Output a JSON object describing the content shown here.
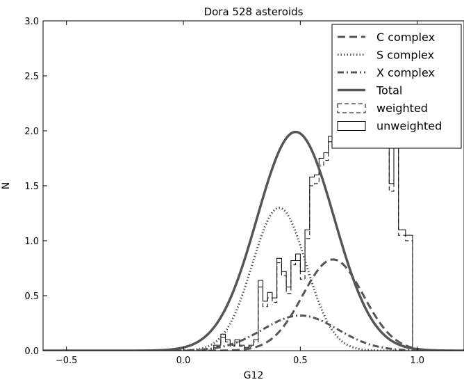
{
  "chart_data": {
    "type": "line",
    "title": "Dora 528 asteroids",
    "xlabel": "G12",
    "ylabel": "N",
    "xlim": [
      -0.6,
      1.2
    ],
    "ylim": [
      0.0,
      3.0
    ],
    "xticks": [
      {
        "v": -0.5,
        "label": "−0.5"
      },
      {
        "v": 0.0,
        "label": "0.0"
      },
      {
        "v": 0.5,
        "label": "0.5"
      },
      {
        "v": 1.0,
        "label": "1.0"
      }
    ],
    "yticks": [
      {
        "v": 0.0,
        "label": "0.0"
      },
      {
        "v": 0.5,
        "label": "0.5"
      },
      {
        "v": 1.0,
        "label": "1.0"
      },
      {
        "v": 1.5,
        "label": "1.5"
      },
      {
        "v": 2.0,
        "label": "2.0"
      },
      {
        "v": 2.5,
        "label": "2.5"
      },
      {
        "v": 3.0,
        "label": "3.0"
      }
    ],
    "grid": false,
    "legend_position": "top-right",
    "color": "#555555",
    "curves": [
      {
        "name": "C complex",
        "style": "dashed",
        "center": 0.64,
        "sigma": 0.13,
        "amplitude": 0.83
      },
      {
        "name": "S complex",
        "style": "dotted",
        "center": 0.41,
        "sigma": 0.115,
        "amplitude": 1.3
      },
      {
        "name": "X complex",
        "style": "dashdot",
        "center": 0.5,
        "sigma": 0.16,
        "amplitude": 0.32
      },
      {
        "name": "Total",
        "style": "solid",
        "center": 0.48,
        "sigma": 0.165,
        "amplitude": 1.99
      }
    ],
    "histograms": [
      {
        "name": "unweighted",
        "style": "solid-step",
        "edges": [
          0.13,
          0.16,
          0.18,
          0.2,
          0.22,
          0.24,
          0.26,
          0.28,
          0.3,
          0.32,
          0.34,
          0.36,
          0.38,
          0.4,
          0.42,
          0.44,
          0.46,
          0.48,
          0.5,
          0.52,
          0.54,
          0.56,
          0.58,
          0.6,
          0.62,
          0.64,
          0.66,
          0.68,
          0.7,
          0.72,
          0.75,
          0.78,
          0.81,
          0.84,
          0.86,
          0.88,
          0.9,
          0.92,
          0.95,
          0.98,
          1.01
        ],
        "values": [
          0.05,
          0.15,
          0.1,
          0.05,
          0.1,
          0.05,
          0.03,
          0.05,
          0.1,
          0.64,
          0.45,
          0.53,
          0.48,
          0.84,
          0.72,
          0.58,
          0.82,
          0.88,
          0.72,
          1.1,
          1.58,
          1.6,
          1.75,
          1.8,
          1.95,
          2.1,
          2.1,
          2.1,
          2.1,
          2.1,
          2.1,
          2.1,
          2.1,
          2.1,
          2.1,
          1.52,
          2.1,
          1.1,
          1.05,
          0.0
        ]
      },
      {
        "name": "weighted",
        "style": "dashed-step",
        "edges": [
          0.13,
          0.16,
          0.18,
          0.2,
          0.22,
          0.24,
          0.26,
          0.28,
          0.3,
          0.32,
          0.34,
          0.36,
          0.38,
          0.4,
          0.42,
          0.44,
          0.46,
          0.48,
          0.5,
          0.52,
          0.54,
          0.56,
          0.58,
          0.6,
          0.62,
          0.64,
          0.66,
          0.68,
          0.7,
          0.72,
          0.75,
          0.78,
          0.81,
          0.84,
          0.86,
          0.88,
          0.9,
          0.92,
          0.95,
          0.98,
          1.01
        ],
        "values": [
          0.04,
          0.12,
          0.08,
          0.04,
          0.08,
          0.04,
          0.02,
          0.04,
          0.08,
          0.58,
          0.4,
          0.48,
          0.44,
          0.8,
          0.68,
          0.52,
          0.78,
          0.82,
          0.65,
          1.02,
          1.5,
          1.52,
          1.68,
          1.73,
          1.9,
          2.05,
          2.05,
          2.05,
          2.05,
          2.05,
          2.05,
          2.05,
          2.05,
          2.05,
          2.05,
          1.45,
          2.05,
          1.05,
          1.0,
          0.0
        ]
      }
    ],
    "legend": [
      {
        "label": "C complex",
        "style": "dashed"
      },
      {
        "label": "S complex",
        "style": "dotted"
      },
      {
        "label": "X complex",
        "style": "dashdot"
      },
      {
        "label": "Total",
        "style": "solid"
      },
      {
        "label": "weighted",
        "style": "box-dashed"
      },
      {
        "label": "unweighted",
        "style": "box-solid"
      }
    ]
  }
}
